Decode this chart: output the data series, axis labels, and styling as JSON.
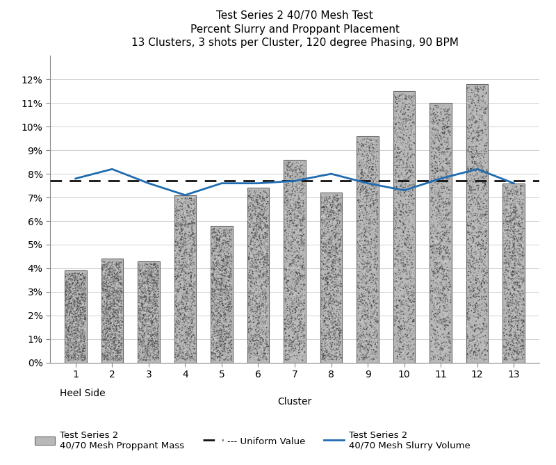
{
  "title_line1": "Test Series 2 40/70 Mesh Test",
  "title_line2": "Percent Slurry and Proppant Placement",
  "title_line3": "13 Clusters, 3 shots per Cluster, 120 degree Phasing, 90 BPM",
  "xlabel": "Cluster",
  "xlabel_heel": "Heel Side",
  "clusters": [
    1,
    2,
    3,
    4,
    5,
    6,
    7,
    8,
    9,
    10,
    11,
    12,
    13
  ],
  "bar_values": [
    0.039,
    0.044,
    0.043,
    0.071,
    0.058,
    0.074,
    0.086,
    0.072,
    0.096,
    0.115,
    0.11,
    0.118,
    0.076
  ],
  "line_values": [
    0.078,
    0.082,
    0.076,
    0.071,
    0.076,
    0.076,
    0.077,
    0.08,
    0.076,
    0.073,
    0.078,
    0.082,
    0.076
  ],
  "uniform_value": 0.077,
  "yticks": [
    0.0,
    0.01,
    0.02,
    0.03,
    0.04,
    0.05,
    0.06,
    0.07,
    0.08,
    0.09,
    0.1,
    0.11,
    0.12
  ],
  "ylim": [
    0,
    0.13
  ],
  "bar_facecolor": "#b8b8b8",
  "bar_edgecolor": "#666666",
  "line_color": "#1f6cb0",
  "uniform_color": "#111111",
  "background_color": "#ffffff",
  "legend_bar_label1": "Test Series 2",
  "legend_bar_label2": "40/70 Mesh Proppant Mass",
  "legend_uniform_label": "Uniform Value",
  "legend_line_label1": "Test Series 2",
  "legend_line_label2": "40/70 Mesh Slurry Volume",
  "title_fontsize": 11,
  "tick_fontsize": 10,
  "label_fontsize": 10,
  "legend_fontsize": 9.5
}
